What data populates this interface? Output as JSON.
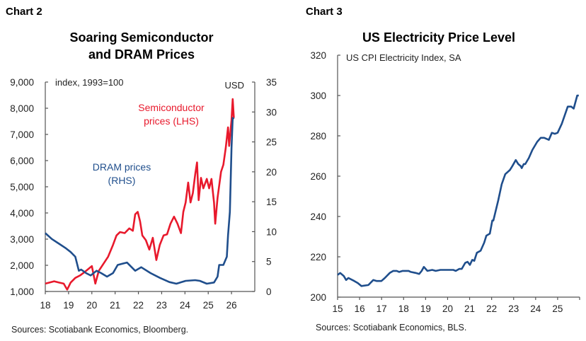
{
  "chart_data": [
    {
      "type": "line",
      "header": "Chart 2",
      "title": "Soaring Semiconductor and DRAM Prices",
      "title_lines": [
        "Soaring Semiconductor",
        "and DRAM Prices"
      ],
      "left_axis_note": "index, 1993=100",
      "right_axis_note": "USD",
      "source": "Sources: Scotiabank Economics, Bloomberg.",
      "xlim": [
        18,
        27
      ],
      "x_ticks": [
        "18",
        "19",
        "20",
        "21",
        "22",
        "23",
        "24",
        "25",
        "26"
      ],
      "ylim_left": [
        1000,
        9000
      ],
      "y_ticks_left": [
        "1,000",
        "2,000",
        "3,000",
        "4,000",
        "5,000",
        "6,000",
        "7,000",
        "8,000",
        "9,000"
      ],
      "ylim_right": [
        0,
        35
      ],
      "y_ticks_right": [
        "0",
        "5",
        "10",
        "15",
        "20",
        "25",
        "30",
        "35"
      ],
      "grid": false,
      "series": [
        {
          "name": "Semiconductor prices (LHS)",
          "label_lines": [
            "Semiconductor",
            "prices (LHS)"
          ],
          "axis": "left",
          "color": "#e8192c",
          "points": [
            [
              18.0,
              1300
            ],
            [
              18.18,
              1340
            ],
            [
              18.38,
              1390
            ],
            [
              18.59,
              1340
            ],
            [
              18.79,
              1300
            ],
            [
              18.94,
              1070
            ],
            [
              19.09,
              1340
            ],
            [
              19.29,
              1520
            ],
            [
              19.49,
              1610
            ],
            [
              19.7,
              1750
            ],
            [
              20.0,
              1970
            ],
            [
              20.15,
              1300
            ],
            [
              20.3,
              1790
            ],
            [
              20.5,
              2060
            ],
            [
              20.7,
              2330
            ],
            [
              20.91,
              2780
            ],
            [
              21.06,
              3140
            ],
            [
              21.21,
              3270
            ],
            [
              21.41,
              3230
            ],
            [
              21.61,
              3410
            ],
            [
              21.76,
              3320
            ],
            [
              21.86,
              3950
            ],
            [
              21.97,
              4040
            ],
            [
              22.07,
              3680
            ],
            [
              22.17,
              3140
            ],
            [
              22.32,
              2960
            ],
            [
              22.47,
              2600
            ],
            [
              22.62,
              3050
            ],
            [
              22.77,
              2200
            ],
            [
              22.92,
              2780
            ],
            [
              23.08,
              3140
            ],
            [
              23.23,
              3180
            ],
            [
              23.38,
              3590
            ],
            [
              23.53,
              3860
            ],
            [
              23.68,
              3590
            ],
            [
              23.83,
              3230
            ],
            [
              23.93,
              4040
            ],
            [
              24.03,
              4400
            ],
            [
              24.14,
              5160
            ],
            [
              24.24,
              4400
            ],
            [
              24.34,
              4760
            ],
            [
              24.44,
              5470
            ],
            [
              24.52,
              5930
            ],
            [
              24.59,
              4490
            ],
            [
              24.69,
              5340
            ],
            [
              24.79,
              4940
            ],
            [
              24.94,
              5300
            ],
            [
              25.04,
              4940
            ],
            [
              25.14,
              5300
            ],
            [
              25.25,
              4400
            ],
            [
              25.3,
              3590
            ],
            [
              25.4,
              4580
            ],
            [
              25.55,
              5570
            ],
            [
              25.65,
              5840
            ],
            [
              25.75,
              6470
            ],
            [
              25.85,
              7270
            ],
            [
              25.9,
              6560
            ],
            [
              26.0,
              7540
            ],
            [
              26.05,
              8350
            ],
            [
              26.1,
              7630
            ]
          ]
        },
        {
          "name": "DRAM prices (RHS)",
          "label_lines": [
            "DRAM prices",
            "(RHS)"
          ],
          "axis": "right",
          "color": "#1f4e8c",
          "points": [
            [
              18.0,
              9.75
            ],
            [
              18.28,
              8.77
            ],
            [
              18.59,
              7.98
            ],
            [
              18.89,
              7.2
            ],
            [
              19.09,
              6.6
            ],
            [
              19.29,
              5.8
            ],
            [
              19.44,
              3.46
            ],
            [
              19.54,
              3.66
            ],
            [
              19.75,
              3.07
            ],
            [
              19.95,
              2.67
            ],
            [
              20.2,
              3.46
            ],
            [
              20.4,
              3.07
            ],
            [
              20.65,
              2.48
            ],
            [
              20.91,
              3.07
            ],
            [
              21.11,
              4.44
            ],
            [
              21.31,
              4.64
            ],
            [
              21.51,
              4.84
            ],
            [
              21.86,
              3.46
            ],
            [
              22.12,
              4.05
            ],
            [
              22.52,
              3.07
            ],
            [
              22.92,
              2.28
            ],
            [
              23.33,
              1.57
            ],
            [
              23.63,
              1.3
            ],
            [
              24.03,
              1.77
            ],
            [
              24.44,
              1.89
            ],
            [
              24.64,
              1.77
            ],
            [
              24.94,
              1.3
            ],
            [
              25.25,
              1.5
            ],
            [
              25.4,
              2.48
            ],
            [
              25.47,
              4.44
            ],
            [
              25.65,
              4.44
            ],
            [
              25.8,
              5.8
            ],
            [
              25.85,
              9.36
            ],
            [
              25.93,
              13.3
            ],
            [
              26.0,
              23.9
            ],
            [
              26.05,
              29.0
            ],
            [
              26.1,
              28.8
            ]
          ]
        }
      ]
    },
    {
      "type": "line",
      "header": "Chart 3",
      "title": "US Electricity Price Level",
      "axis_note": "US CPI Electricity Index, SA",
      "source": "Sources: Scotiabank Economics, BLS.",
      "xlim": [
        15,
        26
      ],
      "x_ticks": [
        "15",
        "16",
        "17",
        "18",
        "19",
        "20",
        "21",
        "22",
        "23",
        "24",
        "25"
      ],
      "ylim": [
        200,
        320
      ],
      "y_ticks": [
        "200",
        "220",
        "240",
        "260",
        "280",
        "300",
        "320"
      ],
      "grid": false,
      "series": [
        {
          "color": "#1f4e8c",
          "points": [
            [
              15.0,
              211
            ],
            [
              15.12,
              212
            ],
            [
              15.28,
              210.5
            ],
            [
              15.39,
              208.5
            ],
            [
              15.49,
              209.5
            ],
            [
              15.76,
              208
            ],
            [
              15.92,
              207
            ],
            [
              16.08,
              205.5
            ],
            [
              16.4,
              206
            ],
            [
              16.62,
              208.5
            ],
            [
              16.78,
              208
            ],
            [
              16.99,
              208
            ],
            [
              17.15,
              209.5
            ],
            [
              17.37,
              212
            ],
            [
              17.53,
              213
            ],
            [
              17.69,
              213
            ],
            [
              17.8,
              212.5
            ],
            [
              17.96,
              213
            ],
            [
              18.23,
              213
            ],
            [
              18.33,
              212.5
            ],
            [
              18.55,
              212
            ],
            [
              18.71,
              211.5
            ],
            [
              18.82,
              213
            ],
            [
              18.92,
              215
            ],
            [
              19.08,
              213
            ],
            [
              19.3,
              213.5
            ],
            [
              19.46,
              213
            ],
            [
              19.67,
              213.5
            ],
            [
              19.99,
              213.5
            ],
            [
              20.26,
              213.5
            ],
            [
              20.37,
              213
            ],
            [
              20.53,
              214
            ],
            [
              20.64,
              214
            ],
            [
              20.8,
              217
            ],
            [
              20.91,
              217.5
            ],
            [
              21.01,
              216
            ],
            [
              21.12,
              218.5
            ],
            [
              21.21,
              218
            ],
            [
              21.33,
              222
            ],
            [
              21.5,
              223
            ],
            [
              21.66,
              227
            ],
            [
              21.76,
              230.5
            ],
            [
              21.92,
              231.5
            ],
            [
              22.03,
              238
            ],
            [
              22.08,
              238
            ],
            [
              22.3,
              248
            ],
            [
              22.46,
              256
            ],
            [
              22.62,
              261
            ],
            [
              22.83,
              263
            ],
            [
              22.94,
              265
            ],
            [
              23.1,
              268
            ],
            [
              23.21,
              266
            ],
            [
              23.32,
              265
            ],
            [
              23.37,
              264
            ],
            [
              23.46,
              266
            ],
            [
              23.53,
              266
            ],
            [
              23.69,
              269
            ],
            [
              23.85,
              273
            ],
            [
              24.07,
              277
            ],
            [
              24.23,
              279
            ],
            [
              24.39,
              279
            ],
            [
              24.5,
              278.5
            ],
            [
              24.6,
              278
            ],
            [
              24.74,
              281.5
            ],
            [
              24.87,
              281
            ],
            [
              25.0,
              281.5
            ],
            [
              25.19,
              286
            ],
            [
              25.46,
              294.5
            ],
            [
              25.62,
              294.5
            ],
            [
              25.73,
              293.5
            ],
            [
              25.89,
              300
            ],
            [
              25.96,
              300
            ]
          ]
        }
      ]
    }
  ]
}
